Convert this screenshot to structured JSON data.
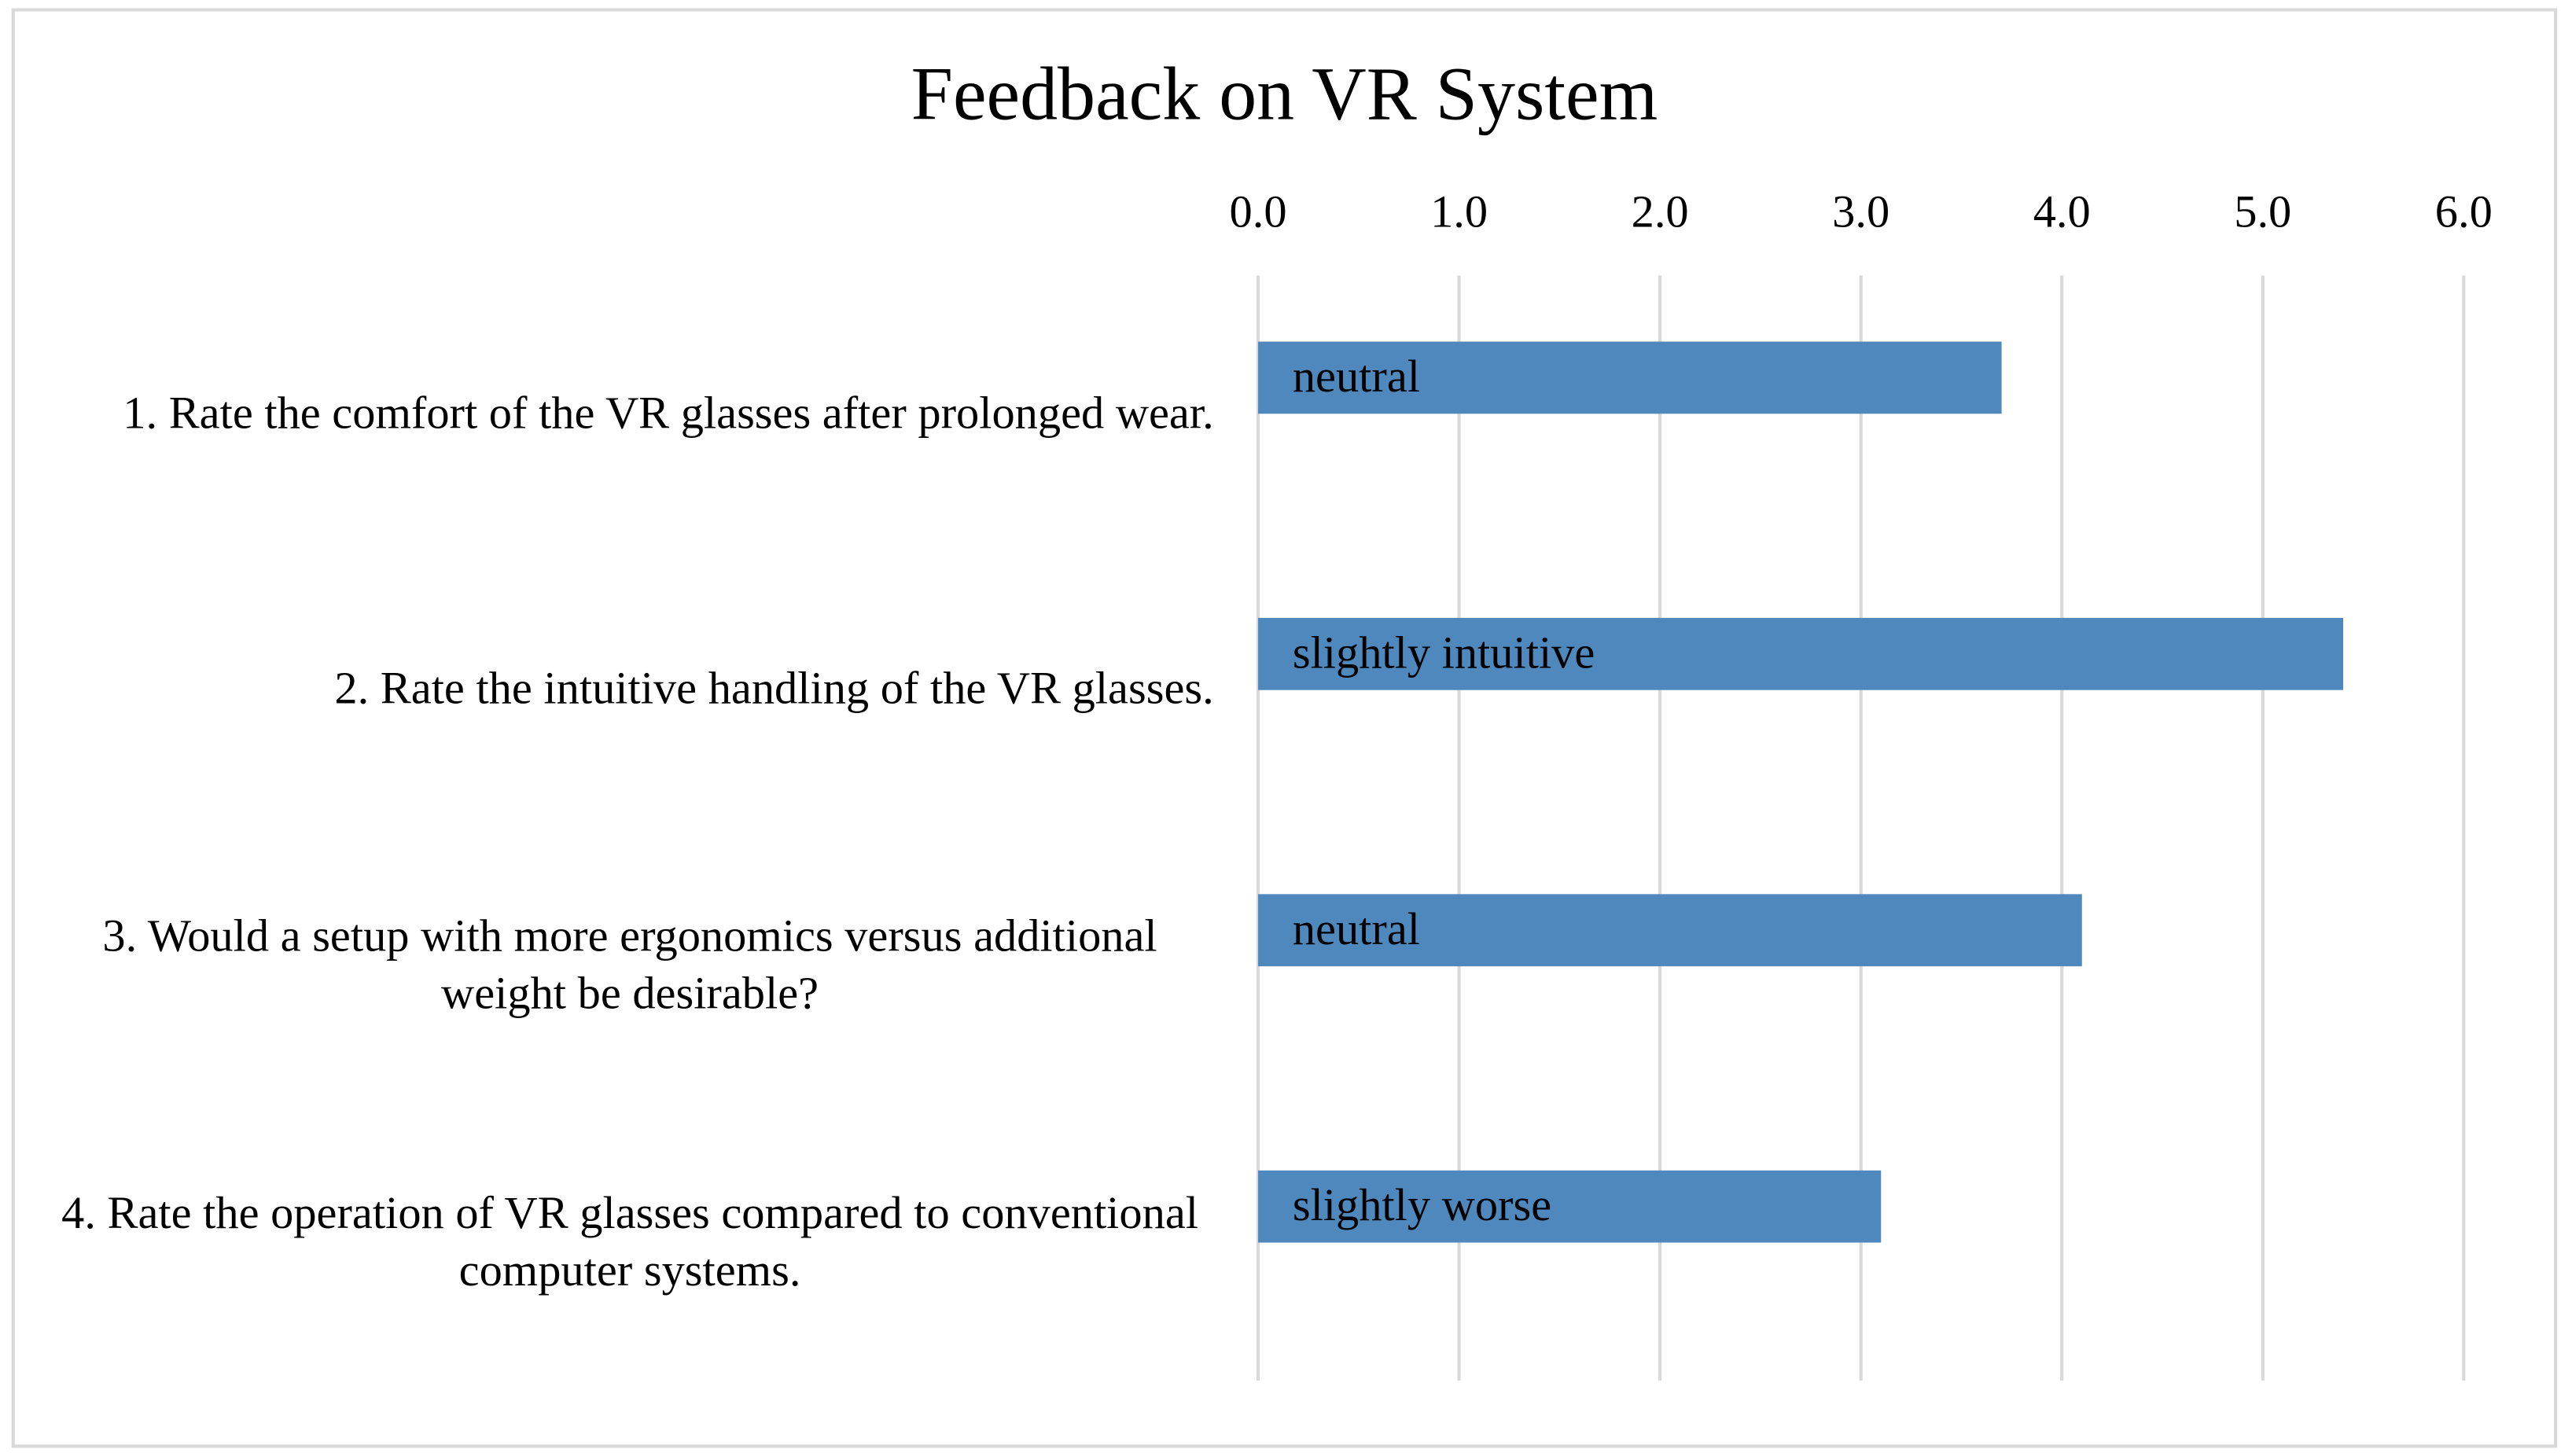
{
  "chart_data": {
    "type": "barh",
    "title": "Feedback on VR System",
    "categories": [
      "1. Rate the comfort of the VR glasses after prolonged wear.",
      "2. Rate the intuitive handling of the VR glasses.",
      "3. Would a setup with more ergonomics versus additional weight be desirable?",
      "4. Rate the operation of VR glasses compared to conventional computer systems."
    ],
    "values": [
      3.7,
      5.4,
      4.1,
      3.1
    ],
    "bar_labels": [
      "neutral",
      "slightly intuitive",
      "neutral",
      "slightly worse"
    ],
    "color": "#4f88bd",
    "xlim": [
      0,
      6
    ],
    "xticks": [
      {
        "value": 0,
        "label": "0.0"
      },
      {
        "value": 1,
        "label": "1.0"
      },
      {
        "value": 2,
        "label": "2.0"
      },
      {
        "value": 3,
        "label": "3.0"
      },
      {
        "value": 4,
        "label": "4.0"
      },
      {
        "value": 5,
        "label": "5.0"
      },
      {
        "value": 6,
        "label": "6.0"
      }
    ],
    "grid": true
  }
}
